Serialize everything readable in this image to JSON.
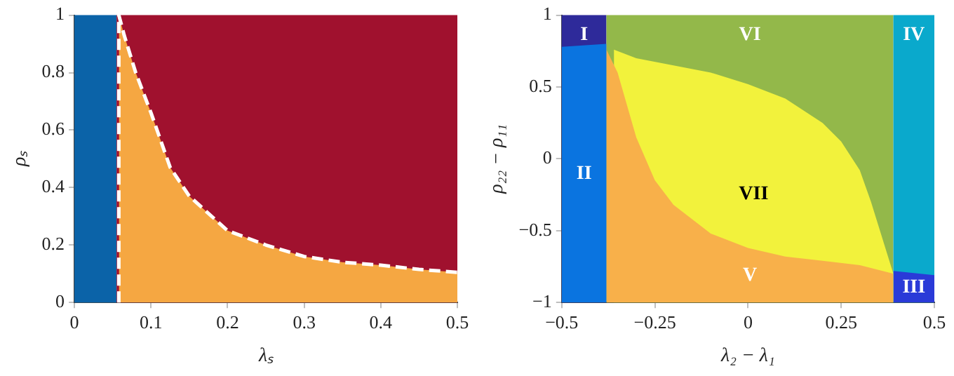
{
  "chart_data": [
    {
      "type": "area",
      "xlabel": "λₛ",
      "ylabel": "ρₛ",
      "xlim": [
        0,
        0.5
      ],
      "ylim": [
        0,
        1
      ],
      "xticks": [
        0,
        0.1,
        0.2,
        0.3,
        0.4,
        0.5
      ],
      "yticks": [
        0,
        0.2,
        0.4,
        0.6,
        0.8,
        1
      ],
      "legend": false,
      "bands": [
        {
          "axis": "x",
          "from": 0,
          "to": 0.055,
          "color": "#0b63a8"
        },
        {
          "axis": "x",
          "from": 0.055,
          "to": 0.5,
          "color": "#a0112e"
        }
      ],
      "series": [
        {
          "color": "#f5a742",
          "line_style": "dashed",
          "x": [
            0.058,
            0.058,
            0.065,
            0.08,
            0.1,
            0.125,
            0.15,
            0.2,
            0.25,
            0.3,
            0.35,
            0.4,
            0.45,
            0.5
          ],
          "values": [
            0,
            1,
            0.93,
            0.8,
            0.66,
            0.47,
            0.37,
            0.25,
            0.2,
            0.16,
            0.14,
            0.13,
            0.115,
            0.105
          ]
        }
      ]
    },
    {
      "type": "area",
      "xlabel": "λ₂ − λ₁",
      "ylabel": "ρ₂₂ − ρ₁₁",
      "xlim": [
        -0.5,
        0.5
      ],
      "ylim": [
        -1,
        1
      ],
      "xticks": [
        {
          "value": -0.5,
          "label": "−0.5"
        },
        {
          "value": -0.25,
          "label": "−0.25"
        },
        0,
        0.25,
        0.5
      ],
      "yticks": [
        {
          "value": -1,
          "label": "−1"
        },
        {
          "value": -0.5,
          "label": "−0.5"
        },
        0,
        0.5,
        1
      ],
      "legend": false,
      "bands": [
        {
          "axis": "x",
          "from": -0.5,
          "to": -0.38,
          "color": "#2e2a9a",
          "label": "I"
        },
        {
          "axis": "x",
          "from": -0.38,
          "to": 0.39,
          "color": "#93b84a",
          "label": "VI"
        },
        {
          "axis": "x",
          "from": 0.39,
          "to": 0.5,
          "color": "#0aa9cc",
          "label": "IV"
        }
      ],
      "series": [
        {
          "name": "VII",
          "color": "#f2f23c",
          "x": [
            -0.36,
            -0.36,
            -0.3,
            -0.2,
            -0.1,
            0,
            0.1,
            0.2,
            0.25,
            0.3,
            0.33,
            0.36,
            0.39,
            0.39
          ],
          "values": [
            -1,
            0.76,
            0.7,
            0.65,
            0.6,
            0.52,
            0.42,
            0.25,
            0.12,
            -0.08,
            -0.3,
            -0.55,
            -0.8,
            -1
          ]
        },
        {
          "name": "V",
          "color": "#f8b04a",
          "x": [
            -0.38,
            -0.38,
            -0.35,
            -0.3,
            -0.25,
            -0.2,
            -0.1,
            0,
            0.1,
            0.2,
            0.3,
            0.39,
            0.39
          ],
          "values": [
            -1,
            0.76,
            0.6,
            0.15,
            -0.15,
            -0.32,
            -0.52,
            -0.62,
            -0.68,
            -0.71,
            -0.74,
            -0.8,
            -1
          ]
        },
        {
          "name": "II",
          "color": "#0a74e0",
          "x": [
            -0.5,
            -0.5,
            -0.38,
            -0.38
          ],
          "values": [
            -1,
            0.78,
            0.8,
            -1
          ]
        },
        {
          "name": "III",
          "color": "#2a3ad8",
          "x": [
            0.39,
            0.39,
            0.5,
            0.5
          ],
          "values": [
            -1,
            -0.78,
            -0.81,
            -1
          ]
        }
      ]
    }
  ]
}
